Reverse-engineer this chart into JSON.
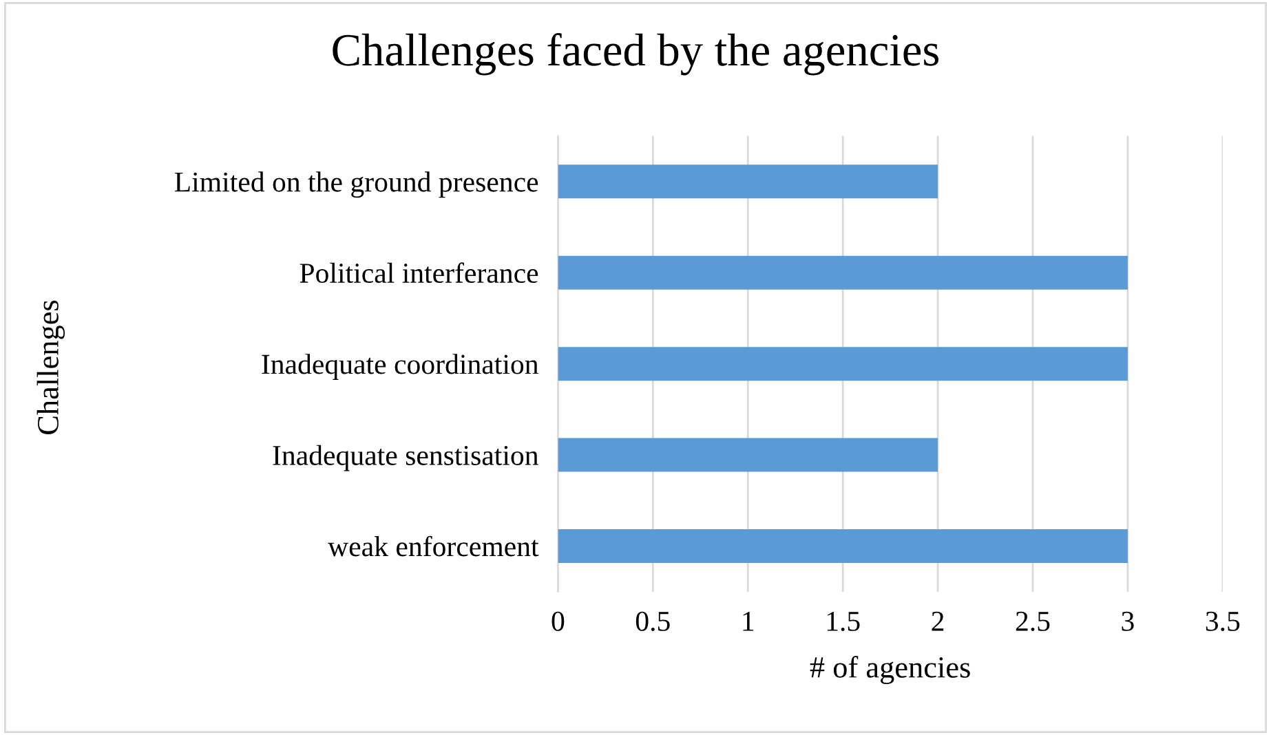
{
  "chart_data": {
    "type": "bar",
    "orientation": "horizontal",
    "title": "Challenges faced by the agencies",
    "xlabel": "# of agencies",
    "ylabel": "Challenges",
    "categories": [
      "Limited on the ground presence",
      "Political interferance",
      "Inadequate coordination",
      "Inadequate senstisation",
      "weak enforcement"
    ],
    "values": [
      2,
      3,
      3,
      2,
      3
    ],
    "color": "#5b9bd5",
    "xlim": [
      0,
      3.5
    ],
    "xticks": [
      0,
      0.5,
      1,
      1.5,
      2,
      2.5,
      3,
      3.5
    ],
    "grid": "x",
    "legend": false
  }
}
